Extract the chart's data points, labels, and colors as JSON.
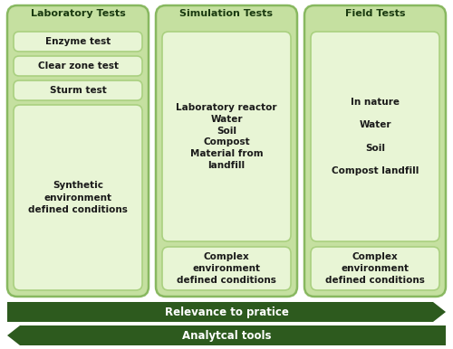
{
  "bg_color": "#ffffff",
  "panel_bg": "#c5e0a0",
  "panel_border": "#88b860",
  "box_bg": "#e8f5d5",
  "box_border": "#aad080",
  "arrow_color": "#2d5a1e",
  "arrow_text_color": "#ffffff",
  "fig_w": 500,
  "fig_h": 386,
  "columns": [
    {
      "title": "Laboratory Tests",
      "boxes": [
        {
          "text": "Enzyme test",
          "style": "single"
        },
        {
          "text": "Clear zone test",
          "style": "single"
        },
        {
          "text": "Sturm test",
          "style": "single"
        },
        {
          "text": "Synthetic\nenvironment\ndefined conditions",
          "style": "multi"
        }
      ]
    },
    {
      "title": "Simulation Tests",
      "boxes": [
        {
          "text": "Laboratory reactor\nWater\nSoil\nCompost\nMaterial from\nlandfill",
          "style": "multi_top"
        },
        {
          "text": "Complex\nenvironment\ndefined conditions",
          "style": "multi"
        }
      ]
    },
    {
      "title": "Field Tests",
      "boxes": [
        {
          "text": "In nature\n\nWater\n\nSoil\n\nCompost landfill",
          "style": "multi_top"
        },
        {
          "text": "Complex\nenvironment\ndefined conditions",
          "style": "multi"
        }
      ]
    }
  ],
  "arrows": [
    {
      "label": "Relevance to pratice",
      "direction": "right"
    },
    {
      "label": "Analytcal tools",
      "direction": "left"
    }
  ]
}
